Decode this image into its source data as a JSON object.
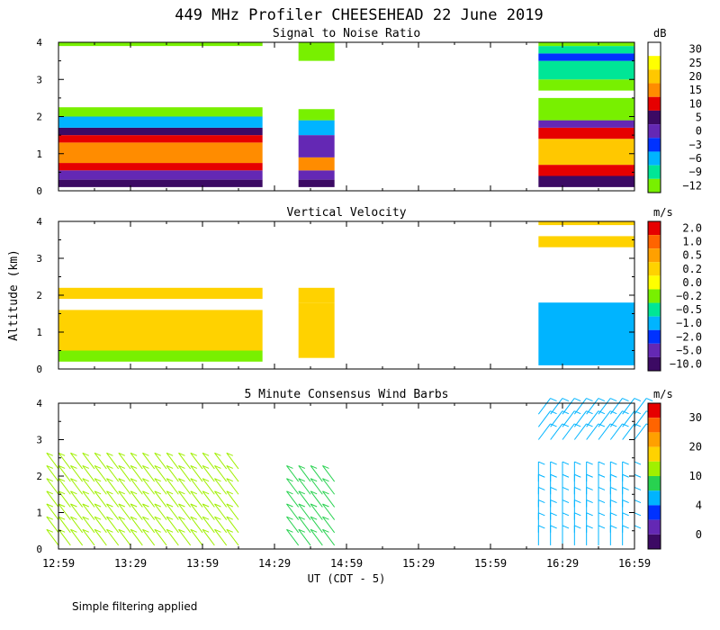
{
  "title": "449 MHz Profiler CHEESEHEAD 22 June 2019",
  "footnote": "Simple filtering applied",
  "chart_data": [
    {
      "type": "heatmap",
      "title": "Signal to Noise Ratio",
      "ylabel": "",
      "ylim": [
        0,
        4
      ],
      "yticks": [
        "0",
        "1",
        "2",
        "3",
        "4"
      ],
      "colorbar": {
        "unit": "dB",
        "labels": [
          "30",
          "25",
          "20",
          "15",
          "10",
          "5",
          "0",
          "−3",
          "−6",
          "−9",
          "−12"
        ],
        "colors": [
          "#ffffff",
          "#ffff00",
          "#ffc800",
          "#ff8c00",
          "#e60000",
          "#3c0a64",
          "#6428b4",
          "#0032ff",
          "#00b4ff",
          "#00e696",
          "#78f000"
        ]
      },
      "data_blocks": [
        {
          "x0": 0,
          "x1": 85,
          "layers": [
            [
              0.1,
              0.3,
              "#3c0a64"
            ],
            [
              0.3,
              0.55,
              "#6428b4"
            ],
            [
              0.55,
              0.75,
              "#e60000"
            ],
            [
              0.75,
              1.3,
              "#ff8c00"
            ],
            [
              1.3,
              1.5,
              "#e60000"
            ],
            [
              1.5,
              1.7,
              "#3c0a64"
            ],
            [
              1.7,
              2.0,
              "#00b4ff"
            ],
            [
              2.0,
              2.25,
              "#78f000"
            ],
            [
              3.9,
              4.0,
              "#78f000"
            ]
          ]
        },
        {
          "x0": 100,
          "x1": 115,
          "layers": [
            [
              0.1,
              0.3,
              "#3c0a64"
            ],
            [
              0.3,
              0.55,
              "#6428b4"
            ],
            [
              0.55,
              0.9,
              "#ff8c00"
            ],
            [
              0.9,
              1.5,
              "#6428b4"
            ],
            [
              1.5,
              1.9,
              "#00b4ff"
            ],
            [
              1.9,
              2.2,
              "#78f000"
            ],
            [
              3.5,
              4.0,
              "#78f000"
            ]
          ]
        },
        {
          "x0": 200,
          "x1": 240,
          "layers": [
            [
              0.1,
              0.4,
              "#3c0a64"
            ],
            [
              0.4,
              0.7,
              "#e60000"
            ],
            [
              0.7,
              1.4,
              "#ffc800"
            ],
            [
              1.4,
              1.7,
              "#e60000"
            ],
            [
              1.7,
              1.9,
              "#6428b4"
            ],
            [
              1.9,
              2.5,
              "#78f000"
            ],
            [
              2.7,
              3.0,
              "#78f000"
            ],
            [
              3.0,
              3.5,
              "#00e696"
            ],
            [
              3.5,
              3.7,
              "#0032ff"
            ],
            [
              3.7,
              3.9,
              "#00e696"
            ],
            [
              3.9,
              4.0,
              "#78f000"
            ]
          ]
        }
      ]
    },
    {
      "type": "heatmap",
      "title": "Vertical Velocity",
      "ylabel": "Altitude (km)",
      "ylim": [
        0,
        4
      ],
      "yticks": [
        "0",
        "1",
        "2",
        "3",
        "4"
      ],
      "colorbar": {
        "unit": "m/s",
        "labels": [
          "2.0",
          "1.0",
          "0.5",
          "0.2",
          "0.0",
          "−0.2",
          "−0.5",
          "−1.0",
          "−2.0",
          "−5.0",
          "−10.0"
        ],
        "colors": [
          "#e60000",
          "#ff6400",
          "#ffa000",
          "#ffd200",
          "#ffff00",
          "#78f000",
          "#00e696",
          "#00b4ff",
          "#0032ff",
          "#6428b4",
          "#3c0a64"
        ]
      },
      "data_blocks": [
        {
          "x0": 0,
          "x1": 85,
          "layers": [
            [
              0.2,
              0.5,
              "#78f000"
            ],
            [
              0.5,
              1.6,
              "#ffd200"
            ],
            [
              1.9,
              2.2,
              "#ffd200"
            ]
          ]
        },
        {
          "x0": 100,
          "x1": 115,
          "layers": [
            [
              0.3,
              1.8,
              "#ffd200"
            ],
            [
              1.8,
              2.2,
              "#ffd200"
            ]
          ]
        },
        {
          "x0": 200,
          "x1": 240,
          "layers": [
            [
              0.1,
              1.8,
              "#00b4ff"
            ],
            [
              3.3,
              3.6,
              "#ffd200"
            ],
            [
              3.9,
              4.0,
              "#ffd200"
            ]
          ]
        }
      ]
    },
    {
      "type": "scatter",
      "title": "5 Minute Consensus Wind Barbs",
      "ylabel": "",
      "ylim": [
        0,
        4
      ],
      "yticks": [
        "0",
        "1",
        "2",
        "3",
        "4"
      ],
      "xlabel": "UT  (CDT - 5)",
      "xlim": [
        0,
        240
      ],
      "xtick_labels": [
        "12:59",
        "13:29",
        "13:59",
        "14:29",
        "14:59",
        "15:29",
        "15:59",
        "16:29",
        "16:59"
      ],
      "colorbar": {
        "unit": "m/s",
        "labels": [
          "30",
          "20",
          "10",
          "4",
          "0"
        ],
        "colors": [
          "#e60000",
          "#ff6400",
          "#ffa000",
          "#ffd200",
          "#a0f000",
          "#28d250",
          "#00b4ff",
          "#0032ff",
          "#6428b4",
          "#3c0a64"
        ]
      },
      "barb_groups": [
        {
          "x0": 0,
          "x1": 75,
          "alt_min": 0.1,
          "alt_max": 2.2,
          "color": "#a0f000",
          "dir": "NW",
          "step": 5
        },
        {
          "x0": 100,
          "x1": 115,
          "alt_min": 0.1,
          "alt_max": 2.0,
          "color": "#28d250",
          "dir": "NW",
          "step": 5
        },
        {
          "x0": 200,
          "x1": 240,
          "alt_min": 0.1,
          "alt_max": 2.0,
          "color": "#00b4ff",
          "dir": "N",
          "step": 5
        },
        {
          "x0": 200,
          "x1": 240,
          "alt_min": 3.0,
          "alt_max": 4.0,
          "color": "#00b4ff",
          "dir": "NE",
          "step": 5
        }
      ]
    }
  ]
}
